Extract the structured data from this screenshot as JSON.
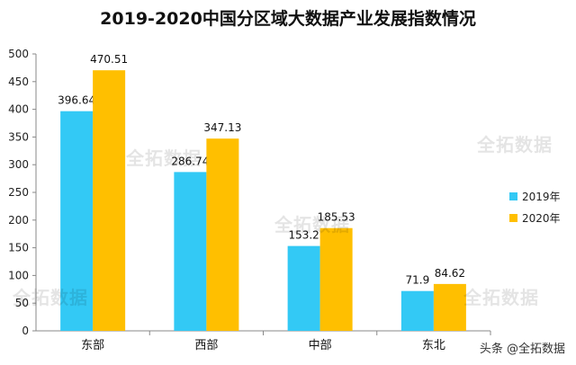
{
  "chart_data": {
    "type": "bar",
    "title": "2019-2020中国分区域大数据产业发展指数情况",
    "categories": [
      "东部",
      "西部",
      "中部",
      "东北"
    ],
    "series": [
      {
        "name": "2019年",
        "color": "#33c9f5",
        "values": [
          396.64,
          286.74,
          153.2,
          71.9
        ],
        "labels": [
          "396.64",
          "286.74",
          "153.2",
          "71.9"
        ]
      },
      {
        "name": "2020年",
        "color": "#ffbf00",
        "values": [
          470.51,
          347.13,
          185.53,
          84.62
        ],
        "labels": [
          "470.51",
          "347.13",
          "185.53",
          "84.62"
        ]
      }
    ],
    "ylim": [
      0,
      500
    ],
    "yticks": [
      0,
      50,
      100,
      150,
      200,
      250,
      300,
      350,
      400,
      450,
      500
    ],
    "grid": false,
    "legend": "right",
    "xlabel": "",
    "ylabel": ""
  },
  "watermarks": [
    "全拓数据",
    "全拓数据",
    "全拓数据",
    "全拓数据",
    "全拓数据"
  ],
  "source": "头条 @全拓数据"
}
